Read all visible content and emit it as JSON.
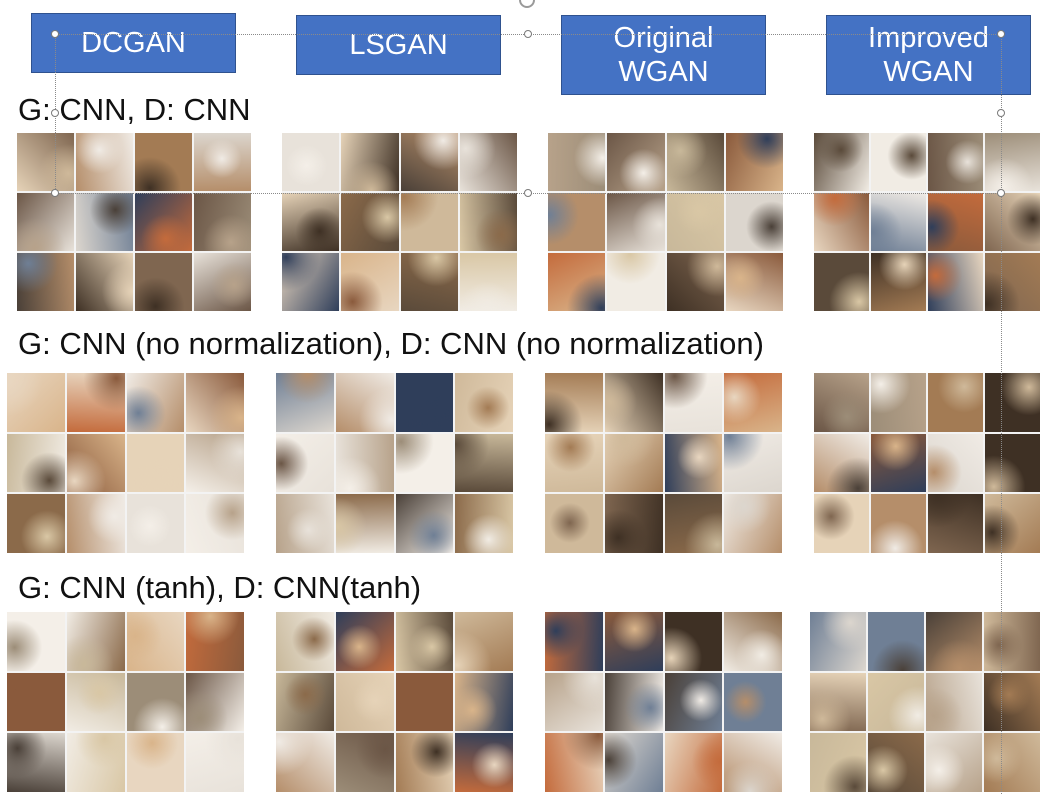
{
  "headers": {
    "dcgan": "DCGAN",
    "lsgan": "LSGAN",
    "original_wgan": "Original\nWGAN",
    "improved_wgan": "Improved\nWGAN"
  },
  "rows": {
    "row1_title": "G: CNN, D: CNN",
    "row2_title": "G: CNN (no normalization), D: CNN (no normalization)",
    "row3_title": "G: CNN (tanh), D: CNN(tanh)"
  },
  "sample_description_note": "",
  "colors": {
    "header_fill": "#4472c4",
    "header_border": "#2f528f",
    "header_text": "#ffffff",
    "text": "#111111"
  },
  "icons": {
    "selection_handle": "circle-handle-icon",
    "rotate_handle": "rotate-handle-icon"
  }
}
